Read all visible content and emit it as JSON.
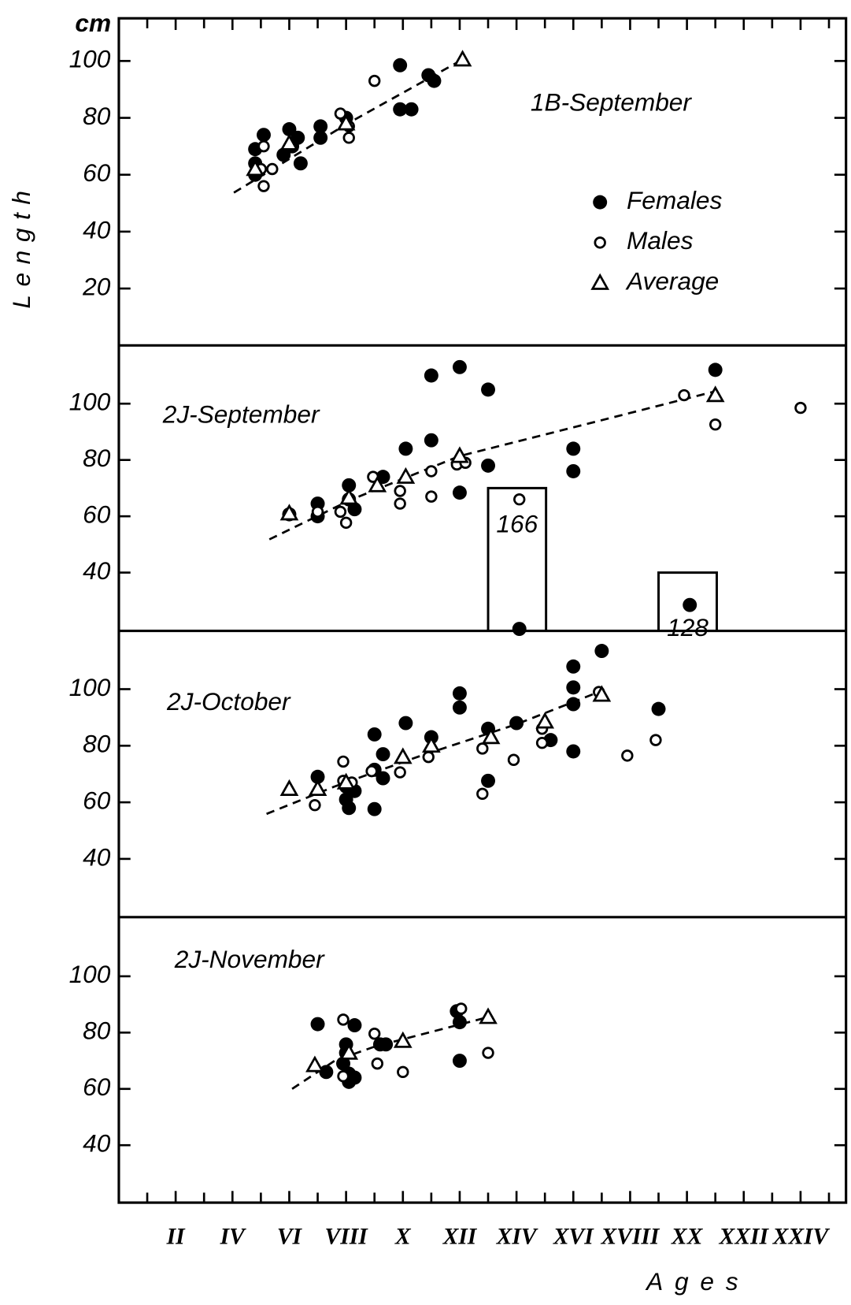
{
  "chart_data": [
    {
      "type": "scatter",
      "title": "1B-September",
      "ylabel": "Length",
      "yunit": "cm",
      "xlim": [
        0,
        25.6
      ],
      "ylim": [
        0,
        115
      ],
      "yticks": [
        20,
        40,
        60,
        80,
        100
      ],
      "legend": "right",
      "series": [
        {
          "name": "Females",
          "marker": "filled",
          "color": "#000000",
          "x": [
            4.8,
            5.1,
            4.8,
            4.8,
            5.8,
            6.0,
            6.1,
            6.3,
            6.4,
            7.1,
            7.1,
            8.0,
            9.9,
            9.9,
            10.3,
            10.9,
            11.1
          ],
          "values": [
            69,
            74,
            64,
            60,
            67,
            76,
            70,
            73,
            64,
            77,
            73,
            80,
            98.5,
            83,
            83,
            95,
            93
          ]
        },
        {
          "name": "Males",
          "marker": "open",
          "color": "#000000",
          "x": [
            5.1,
            5.0,
            5.4,
            5.1,
            7.8,
            8.1,
            8.1,
            9.0
          ],
          "values": [
            56,
            62,
            62,
            70,
            81.5,
            73,
            77,
            93
          ]
        },
        {
          "name": "Average",
          "marker": "triangle",
          "color": "#000000",
          "x": [
            4.8,
            6.0,
            8.0,
            12.1
          ],
          "values": [
            62,
            71,
            78,
            100.5
          ]
        }
      ],
      "trend": {
        "x": [
          4.05,
          8.0,
          12.1
        ],
        "y": [
          53.7,
          77.7,
          100.5
        ]
      }
    },
    {
      "type": "scatter",
      "title": "2J-September",
      "xlim": [
        0,
        25.6
      ],
      "ylim": [
        19.3,
        120.7
      ],
      "yticks": [
        40,
        60,
        80,
        100
      ],
      "series": [
        {
          "marker": "filled",
          "color": "#000000",
          "x": [
            6.0,
            7.0,
            7.0,
            8.1,
            8.1,
            8.3,
            9.3,
            10.1,
            11.0,
            11.0,
            12.0,
            12.0,
            13.0,
            13.0,
            14.1,
            16.0,
            16.0,
            20.1,
            21.0
          ],
          "values": [
            60.7,
            60,
            64.5,
            71,
            66,
            62.5,
            74,
            84,
            110,
            87,
            113,
            68.4,
            105,
            78,
            20,
            84,
            76,
            28.5,
            112
          ]
        },
        {
          "marker": "open",
          "color": "#000000",
          "x": [
            7.0,
            7.8,
            8.0,
            8.95,
            9.9,
            9.9,
            11.0,
            11.0,
            11.9,
            12.2,
            14.1,
            19.9,
            21.0,
            24.0
          ],
          "values": [
            61.6,
            61.6,
            57.7,
            74,
            64.5,
            69,
            76,
            67,
            78.4,
            79,
            66,
            103,
            92.6,
            98.5
          ]
        },
        {
          "marker": "triangle",
          "color": "#000000",
          "x": [
            6.0,
            8.1,
            9.1,
            10.1,
            12.0,
            21.0
          ],
          "values": [
            61,
            66.6,
            71,
            74,
            81.4,
            103
          ]
        }
      ],
      "trend": {
        "x": [
          5.3,
          8.2,
          12.0,
          16.95,
          21.0
        ],
        "y": [
          51.8,
          66,
          81.4,
          94,
          104.4
        ]
      },
      "inset_bars": [
        {
          "x0": 13.0,
          "x1": 15.04,
          "top": 70,
          "count": 166
        },
        {
          "x0": 19.0,
          "x1": 21.05,
          "top": 40,
          "count": 128
        }
      ]
    },
    {
      "type": "scatter",
      "title": "2J-October",
      "xlim": [
        0,
        25.6
      ],
      "ylim": [
        19.4,
        120.6
      ],
      "yticks": [
        40,
        60,
        80,
        100
      ],
      "series": [
        {
          "marker": "filled",
          "color": "#000000",
          "x": [
            7.0,
            8.0,
            8.0,
            8.1,
            8.3,
            9.0,
            9.0,
            9.0,
            9.3,
            9.3,
            10.1,
            11.0,
            12.0,
            12.0,
            13.0,
            13.0,
            14.0,
            15.2,
            16.0,
            16.0,
            16.0,
            16.0,
            17.0,
            19.0
          ],
          "values": [
            69,
            65.6,
            61,
            58,
            64,
            84,
            71.5,
            57.6,
            77,
            68.5,
            88,
            83,
            98.5,
            93.5,
            86,
            67.6,
            88,
            82,
            108,
            100.6,
            94.7,
            78,
            113.5,
            93
          ]
        },
        {
          "marker": "open",
          "color": "#000000",
          "x": [
            6.9,
            7.9,
            7.9,
            8.2,
            8.9,
            9.9,
            10.9,
            12.8,
            12.8,
            13.9,
            14.9,
            14.9,
            16.9,
            17.9,
            18.9
          ],
          "values": [
            59,
            74.4,
            67.6,
            67,
            71,
            70.6,
            76,
            79,
            63,
            75,
            81,
            86,
            99,
            76.5,
            82
          ]
        },
        {
          "marker": "triangle",
          "color": "#000000",
          "x": [
            6.0,
            7.0,
            8.0,
            10.0,
            11.0,
            13.1,
            15.0,
            17.0
          ],
          "values": [
            64.7,
            64.7,
            67,
            76,
            80,
            83,
            88.5,
            98
          ]
        }
      ],
      "trend": {
        "x": [
          5.2,
          7.6,
          10.5,
          14.0,
          17.0
        ],
        "y": [
          55.9,
          65.6,
          76,
          87.6,
          99.4
        ]
      }
    },
    {
      "type": "scatter",
      "title": "2J-November",
      "xlabel": "Ages",
      "xlim": [
        0,
        25.6
      ],
      "ylim": [
        19.6,
        121
      ],
      "yticks": [
        40,
        60,
        80,
        100
      ],
      "xticks": [
        {
          "value": 2,
          "label": "II"
        },
        {
          "value": 4,
          "label": "IV"
        },
        {
          "value": 6,
          "label": "VI"
        },
        {
          "value": 8,
          "label": "VIII"
        },
        {
          "value": 10,
          "label": "X"
        },
        {
          "value": 12,
          "label": "XII"
        },
        {
          "value": 14,
          "label": "XIV"
        },
        {
          "value": 16,
          "label": "XVI"
        },
        {
          "value": 18,
          "label": "XVIII"
        },
        {
          "value": 20,
          "label": "XX"
        },
        {
          "value": 22,
          "label": "XXII"
        },
        {
          "value": 24,
          "label": "XXIV"
        }
      ],
      "xminorticks": [
        1,
        3,
        5,
        7,
        9,
        11,
        13,
        15,
        17,
        19,
        21,
        23,
        25
      ],
      "series": [
        {
          "marker": "filled",
          "color": "#000000",
          "x": [
            7.0,
            7.3,
            8.0,
            8.0,
            7.9,
            8.1,
            8.1,
            8.3,
            8.3,
            9.2,
            9.4,
            12.0,
            12.0,
            11.9
          ],
          "values": [
            83,
            66,
            75.8,
            72.8,
            69,
            65.4,
            62.5,
            82.6,
            64,
            75.8,
            75.8,
            83.7,
            70,
            87.6
          ]
        },
        {
          "marker": "open",
          "color": "#000000",
          "x": [
            7.9,
            7.9,
            9.0,
            9.1,
            10.0,
            13.0,
            12.05
          ],
          "values": [
            84.6,
            64.5,
            79.6,
            69,
            66,
            72.8,
            88.5
          ]
        },
        {
          "marker": "triangle",
          "color": "#000000",
          "x": [
            6.9,
            8.1,
            10.0,
            13.0
          ],
          "values": [
            68.4,
            72.8,
            77,
            85.5
          ]
        }
      ],
      "trend": {
        "x": [
          6.1,
          7.6,
          9.0,
          13.0
        ],
        "y": [
          60,
          70,
          75,
          85.5
        ]
      }
    }
  ]
}
